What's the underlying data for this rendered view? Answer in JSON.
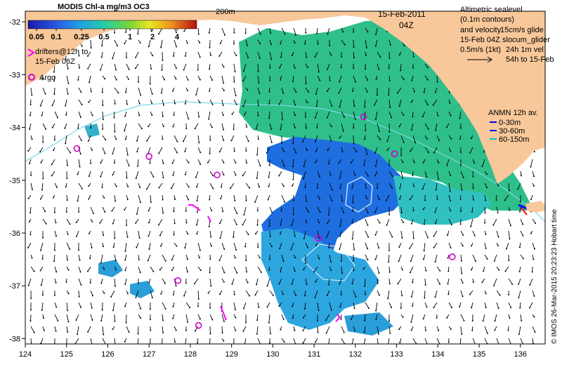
{
  "colorbar": {
    "title": "MODIS Chl-a mg/m3 OC3",
    "ticks": [
      "0.05",
      "0.1",
      "0.25",
      "0.5",
      "1",
      "2",
      "4"
    ]
  },
  "labels": {
    "isobath": "200m",
    "date": "15-Feb-2011",
    "time": "04Z",
    "drifters_line1": "drifters@12h to",
    "drifters_line2": "15-Feb 06Z",
    "argo": "Argo",
    "alt_line1": "Altimetric sealevel",
    "alt_line2": "(0.1m contours)",
    "alt_line3": "and velocity",
    "alt_line3b": "15cm/s glide",
    "alt_line4": "15-Feb 04Z",
    "alt_line4b": "slocum_glider",
    "alt_line5": "0.5m/s (1kt)",
    "alt_line5b": "24h 1m vel",
    "alt_line6": "54h to 15-Feb",
    "anmn_title": "ANMN 12h av.",
    "anmn_1": "0-30m",
    "anmn_2": "30-60m",
    "anmn_3": "60-150m",
    "copyright": "© IMOS 26-Mar-2015 20:23:23 Hobart time"
  },
  "axes": {
    "x_ticks": [
      "124",
      "125",
      "126",
      "127",
      "128",
      "129",
      "130",
      "131",
      "132",
      "133",
      "134",
      "135",
      "136"
    ],
    "y_ticks": [
      "-32",
      "-33",
      "-34",
      "-35",
      "-36",
      "-37",
      "-38"
    ],
    "lon_range": [
      124,
      136.6
    ],
    "lat_range": [
      -38.1,
      -31.8
    ]
  },
  "argo_floats": [
    {
      "lon": 125.25,
      "lat": -34.4
    },
    {
      "lon": 127.0,
      "lat": -34.55
    },
    {
      "lon": 128.65,
      "lat": -34.9
    },
    {
      "lon": 127.7,
      "lat": -36.9
    },
    {
      "lon": 128.2,
      "lat": -37.75
    },
    {
      "lon": 131.1,
      "lat": -36.1
    },
    {
      "lon": 132.2,
      "lat": -33.8
    },
    {
      "lon": 132.95,
      "lat": -34.5
    },
    {
      "lon": 134.35,
      "lat": -36.45
    }
  ],
  "colors": {
    "land": "#f8c89a",
    "ocean": "#ffffff",
    "arrows": "#000000",
    "drifters": "#ff00ff",
    "argo": "#cc00cc",
    "isobath": "#7ad8e6",
    "anmn_1": "#0000ff",
    "anmn_2": "#0000ff",
    "anmn_3": "#00c8c8"
  }
}
